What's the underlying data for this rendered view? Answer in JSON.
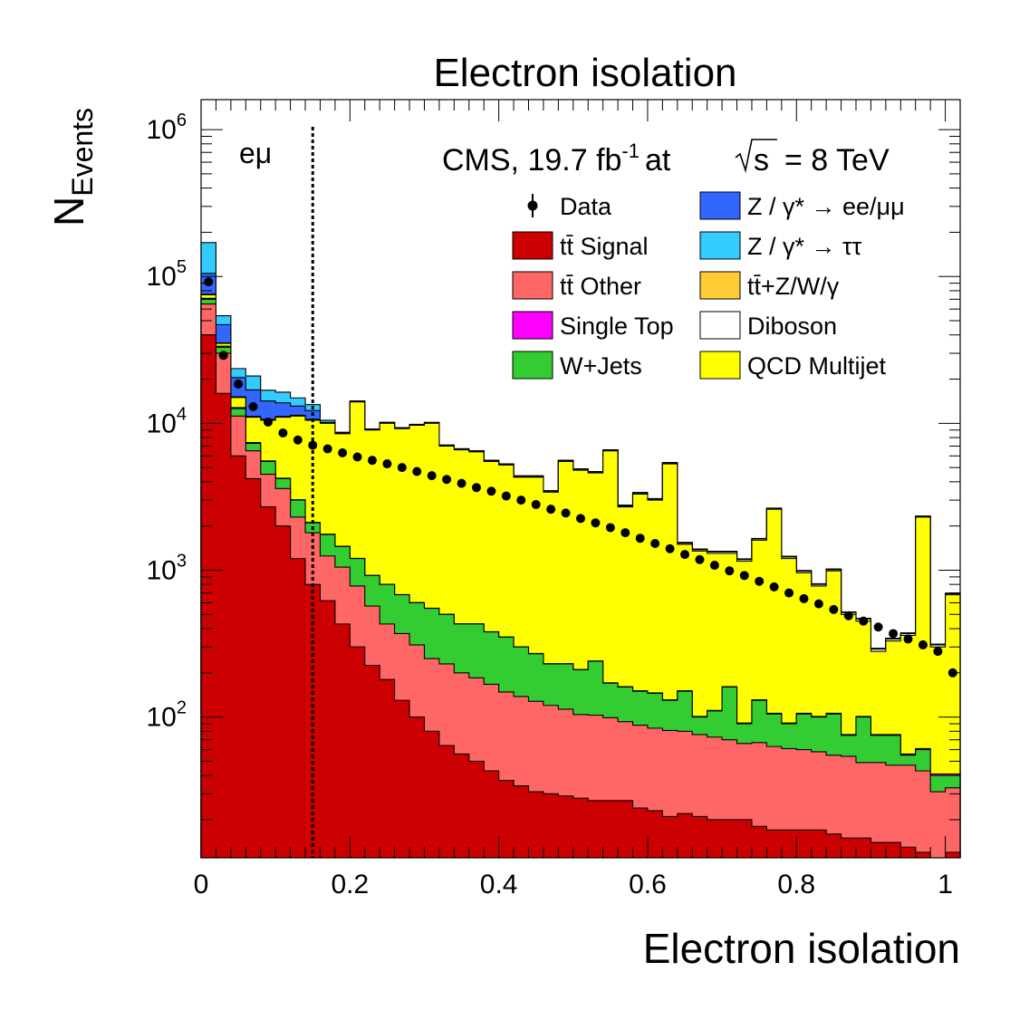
{
  "chart_data": {
    "type": "bar",
    "title": "Electron isolation",
    "xlabel": "Electron isolation",
    "ylabel_main": "N",
    "ylabel_sub": "Events",
    "annotation_cms": "CMS, 19.7 fb",
    "annotation_lumi_exp": "-1",
    "annotation_at": "at",
    "annotation_sqrt_s": "s",
    "annotation_energy": "=  8 TeV",
    "channel": "eμ",
    "xlim": [
      0,
      1.02
    ],
    "ylim": [
      11,
      1600000
    ],
    "yscale": "log",
    "cut_line_x": 0.15,
    "x_ticks": [
      {
        "v": 0,
        "label": "0"
      },
      {
        "v": 0.2,
        "label": "0.2"
      },
      {
        "v": 0.4,
        "label": "0.4"
      },
      {
        "v": 0.6,
        "label": "0.6"
      },
      {
        "v": 0.8,
        "label": "0.8"
      },
      {
        "v": 1,
        "label": "1"
      }
    ],
    "y_ticks": [
      {
        "v": 100,
        "base": "10",
        "exp": "2"
      },
      {
        "v": 1000,
        "base": "10",
        "exp": "3"
      },
      {
        "v": 10000,
        "base": "10",
        "exp": "4"
      },
      {
        "v": 100000,
        "base": "10",
        "exp": "5"
      },
      {
        "v": 1000000,
        "base": "10",
        "exp": "6"
      }
    ],
    "bins": {
      "start": 0,
      "width": 0.02,
      "count": 51
    },
    "stack_totals": [
      {
        "name": "tt̄ Signal",
        "color": "#cc0000",
        "values": [
          40000,
          16000,
          6000,
          4200,
          2700,
          2000,
          1200,
          800,
          620,
          430,
          300,
          225,
          180,
          130,
          100,
          80,
          64,
          56,
          50,
          43,
          37,
          34,
          31,
          30,
          29,
          28,
          27,
          27,
          27,
          24,
          23,
          21,
          22,
          21,
          20,
          20,
          20,
          18,
          17,
          17,
          17,
          17,
          16,
          15,
          15,
          14,
          14,
          13,
          12,
          10,
          12
        ]
      },
      {
        "name": "tt̄ Other",
        "color": "#ff6666",
        "values": [
          65000,
          30000,
          11200,
          6500,
          4500,
          3600,
          2300,
          1800,
          1250,
          1050,
          780,
          570,
          430,
          370,
          310,
          250,
          230,
          200,
          185,
          167,
          148,
          138,
          128,
          120,
          113,
          104,
          103,
          99,
          93,
          88,
          84,
          81,
          80,
          76,
          73,
          70,
          66,
          67,
          63,
          61,
          60,
          58,
          55,
          54,
          49,
          49,
          47,
          47,
          43,
          31,
          33
        ]
      },
      {
        "name": "W+Jets",
        "color": "#33cc33",
        "values": [
          70000,
          33000,
          12600,
          7300,
          5500,
          4200,
          3000,
          2100,
          1750,
          1450,
          1200,
          920,
          800,
          680,
          600,
          550,
          500,
          430,
          430,
          380,
          350,
          300,
          270,
          230,
          230,
          210,
          240,
          170,
          160,
          150,
          145,
          130,
          150,
          100,
          110,
          160,
          90,
          130,
          105,
          90,
          105,
          100,
          105,
          75,
          100,
          75,
          75,
          55,
          60,
          40,
          40
        ]
      },
      {
        "name": "Single Top",
        "color": "#ff00ff",
        "values": [
          71000,
          33500,
          12800,
          7400,
          5550,
          4230,
          3020,
          2115,
          1760,
          1455,
          1203,
          922,
          802,
          682,
          602,
          551,
          501,
          431,
          431,
          381,
          351,
          301,
          271,
          231,
          231,
          211,
          241,
          171,
          161,
          151,
          146,
          131,
          151,
          101,
          111,
          161,
          91,
          131,
          106,
          91,
          106,
          101,
          106,
          76,
          101,
          76,
          76,
          56,
          61,
          41,
          41
        ]
      },
      {
        "name": "QCD Multijet",
        "color": "#ffff00",
        "values": [
          75000,
          35000,
          15000,
          11000,
          10500,
          11000,
          11200,
          10500,
          10000,
          8500,
          14000,
          9000,
          10000,
          9200,
          9700,
          10000,
          7000,
          6600,
          6400,
          5500,
          5200,
          4300,
          4300,
          3400,
          5500,
          4800,
          4600,
          6500,
          2700,
          3300,
          3000,
          5300,
          1500,
          1350,
          1300,
          1300,
          1150,
          1600,
          2600,
          1200,
          960,
          780,
          990,
          500,
          450,
          280,
          330,
          360,
          2300,
          300,
          680
        ]
      },
      {
        "name": "Diboson",
        "color": "#ffffff",
        "values": [
          75500,
          35200,
          15100,
          11100,
          10600,
          11100,
          11300,
          10600,
          10100,
          8600,
          14100,
          9080,
          10090,
          9280,
          9780,
          10080,
          7070,
          6670,
          6470,
          5560,
          5260,
          4360,
          4360,
          3450,
          5560,
          4860,
          4660,
          6570,
          2740,
          3350,
          3040,
          5360,
          1530,
          1380,
          1330,
          1330,
          1180,
          1630,
          2630,
          1230,
          985,
          800,
          1010,
          515,
          465,
          290,
          340,
          370,
          2320,
          310,
          690
        ]
      },
      {
        "name": "tt̄+Z/W/γ",
        "color": "#ffcc33",
        "values": [
          75700,
          35300,
          15150,
          11150,
          10650,
          11150,
          11350,
          10650,
          10150,
          8650,
          14150,
          9120,
          10130,
          9320,
          9820,
          10120,
          7100,
          6700,
          6500,
          5590,
          5290,
          4380,
          4380,
          3470,
          5590,
          4880,
          4680,
          6600,
          2760,
          3370,
          3060,
          5390,
          1540,
          1390,
          1340,
          1340,
          1190,
          1640,
          2640,
          1240,
          990,
          805,
          1015,
          518,
          468,
          292,
          342,
          372,
          2330,
          312,
          695
        ]
      },
      {
        "name": "Z / γ* → ττ",
        "color": "#33ccff",
        "values": [
          170000,
          54000,
          23600,
          21000,
          16800,
          16300,
          14900,
          13400,
          10500,
          8700,
          14200,
          9150,
          10150,
          9340,
          9840,
          10140,
          7110,
          6710,
          6510,
          5600,
          5300,
          4390,
          4390,
          3480,
          5600,
          4890,
          4690,
          6610,
          2770,
          3380,
          3070,
          5400,
          1545,
          1395,
          1345,
          1345,
          1195,
          1645,
          2645,
          1245,
          995,
          808,
          1018,
          520,
          470,
          294,
          344,
          374,
          2335,
          314,
          698
        ]
      },
      {
        "name": "Z / γ* → ee/μμ",
        "color": "#3366ff",
        "values": [
          105000,
          47000,
          20500,
          16900,
          14200,
          13800,
          13100,
          12200,
          9800,
          8650,
          14180,
          9140,
          10140,
          9330,
          9830,
          10130,
          7105,
          6705,
          6505,
          5595,
          5295,
          4385,
          4385,
          3475,
          5595,
          4885,
          4685,
          6605,
          2765,
          3375,
          3065,
          5395,
          1542,
          1392,
          1342,
          1342,
          1192,
          1642,
          2642,
          1242,
          992,
          806,
          1016,
          519,
          469,
          293,
          343,
          373,
          2332,
          313,
          696
        ]
      }
    ],
    "stack_draw_order": [
      "Z / γ* → ττ",
      "Z / γ* → ee/μμ",
      "tt̄+Z/W/γ",
      "Diboson",
      "QCD Multijet",
      "Single Top",
      "W+Jets",
      "tt̄ Other",
      "tt̄ Signal"
    ],
    "data_points": {
      "name": "Data",
      "x": [
        0.01,
        0.03,
        0.05,
        0.07,
        0.09,
        0.11,
        0.13,
        0.15,
        0.17,
        0.19,
        0.21,
        0.23,
        0.25,
        0.27,
        0.29,
        0.31,
        0.33,
        0.35,
        0.37,
        0.39,
        0.41,
        0.43,
        0.45,
        0.47,
        0.49,
        0.51,
        0.53,
        0.55,
        0.57,
        0.59,
        0.61,
        0.63,
        0.65,
        0.67,
        0.69,
        0.71,
        0.73,
        0.75,
        0.77,
        0.79,
        0.81,
        0.83,
        0.85,
        0.87,
        0.89,
        0.91,
        0.93,
        0.95,
        0.97,
        0.99,
        1.01
      ],
      "y": [
        92000,
        29000,
        18500,
        13000,
        10200,
        8600,
        7700,
        7100,
        6700,
        6300,
        5900,
        5600,
        5300,
        5000,
        4700,
        4400,
        4150,
        3900,
        3650,
        3450,
        3200,
        3000,
        2800,
        2600,
        2450,
        2250,
        2100,
        1950,
        1800,
        1650,
        1520,
        1400,
        1280,
        1180,
        1080,
        990,
        920,
        840,
        770,
        700,
        640,
        590,
        540,
        490,
        450,
        410,
        370,
        340,
        310,
        280,
        200
      ]
    },
    "legend": {
      "placement": "top-right",
      "entries": [
        {
          "label": "Data",
          "kind": "marker",
          "color": "#000000"
        },
        {
          "label": "Z / γ* → ee/μμ",
          "kind": "box",
          "color": "#3366ff"
        },
        {
          "label": "tt̄ Signal",
          "kind": "box",
          "color": "#cc0000"
        },
        {
          "label": "Z / γ* → ττ",
          "kind": "box",
          "color": "#33ccff"
        },
        {
          "label": "tt̄ Other",
          "kind": "box",
          "color": "#ff6666"
        },
        {
          "label": "tt̄+Z/W/γ",
          "kind": "box",
          "color": "#ffcc33"
        },
        {
          "label": "Single Top",
          "kind": "box",
          "color": "#ff00ff"
        },
        {
          "label": "Diboson",
          "kind": "box",
          "color": "#ffffff"
        },
        {
          "label": "W+Jets",
          "kind": "box",
          "color": "#33cc33"
        },
        {
          "label": "QCD Multijet",
          "kind": "box",
          "color": "#ffff00"
        }
      ]
    }
  }
}
